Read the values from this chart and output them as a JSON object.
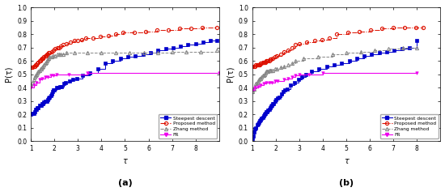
{
  "title_a": "(a)",
  "title_b": "(b)",
  "xlabel": "τ",
  "ylabel": "P(τ)",
  "xlim": [
    1,
    9
  ],
  "ylim": [
    0,
    1
  ],
  "yticks": [
    0,
    0.1,
    0.2,
    0.3,
    0.4,
    0.5,
    0.6,
    0.7,
    0.8,
    0.9,
    1.0
  ],
  "xticks": [
    1,
    2,
    3,
    4,
    5,
    6,
    7,
    8
  ],
  "a_steepest_x": [
    1.0,
    1.08,
    1.12,
    1.16,
    1.2,
    1.24,
    1.28,
    1.32,
    1.36,
    1.4,
    1.44,
    1.48,
    1.52,
    1.56,
    1.6,
    1.64,
    1.68,
    1.72,
    1.76,
    1.8,
    1.84,
    1.88,
    1.92,
    1.96,
    2.0,
    2.08,
    2.16,
    2.24,
    2.32,
    2.4,
    2.48,
    2.64,
    2.8,
    2.96,
    3.2,
    3.52,
    3.84,
    4.16,
    4.48,
    4.8,
    5.12,
    5.44,
    5.76,
    6.08,
    6.4,
    6.72,
    7.04,
    7.36,
    7.68,
    8.0,
    8.32,
    8.64,
    8.9
  ],
  "a_steepest_y": [
    0.2,
    0.21,
    0.21,
    0.22,
    0.24,
    0.24,
    0.25,
    0.25,
    0.27,
    0.27,
    0.27,
    0.28,
    0.28,
    0.29,
    0.3,
    0.3,
    0.3,
    0.31,
    0.32,
    0.33,
    0.34,
    0.35,
    0.37,
    0.38,
    0.38,
    0.4,
    0.4,
    0.41,
    0.41,
    0.43,
    0.44,
    0.45,
    0.46,
    0.47,
    0.49,
    0.51,
    0.54,
    0.58,
    0.6,
    0.62,
    0.63,
    0.64,
    0.65,
    0.66,
    0.68,
    0.69,
    0.7,
    0.71,
    0.72,
    0.73,
    0.74,
    0.75,
    0.75
  ],
  "a_proposed_x": [
    1.0,
    1.08,
    1.12,
    1.16,
    1.2,
    1.24,
    1.28,
    1.32,
    1.36,
    1.4,
    1.44,
    1.48,
    1.52,
    1.56,
    1.6,
    1.64,
    1.68,
    1.72,
    1.76,
    1.8,
    1.88,
    1.96,
    2.04,
    2.12,
    2.2,
    2.28,
    2.36,
    2.52,
    2.68,
    2.84,
    3.0,
    3.16,
    3.32,
    3.64,
    3.96,
    4.28,
    4.6,
    4.92,
    5.4,
    5.88,
    6.36,
    6.84,
    7.32,
    7.8,
    8.28,
    8.9
  ],
  "a_proposed_y": [
    0.55,
    0.55,
    0.56,
    0.56,
    0.57,
    0.57,
    0.58,
    0.59,
    0.6,
    0.6,
    0.61,
    0.62,
    0.62,
    0.63,
    0.64,
    0.64,
    0.65,
    0.65,
    0.66,
    0.66,
    0.67,
    0.68,
    0.69,
    0.7,
    0.7,
    0.71,
    0.72,
    0.73,
    0.74,
    0.75,
    0.75,
    0.76,
    0.77,
    0.77,
    0.78,
    0.79,
    0.8,
    0.81,
    0.81,
    0.82,
    0.83,
    0.83,
    0.84,
    0.84,
    0.85,
    0.85
  ],
  "a_zhang_x": [
    1.0,
    1.08,
    1.12,
    1.16,
    1.2,
    1.24,
    1.28,
    1.32,
    1.36,
    1.4,
    1.44,
    1.48,
    1.52,
    1.56,
    1.6,
    1.64,
    1.68,
    1.72,
    1.76,
    1.8,
    1.88,
    1.96,
    2.04,
    2.12,
    2.2,
    2.28,
    2.36,
    2.52,
    2.84,
    3.4,
    4.0,
    4.6,
    5.2,
    5.8,
    6.4,
    7.0,
    7.6,
    8.2,
    8.9
  ],
  "a_zhang_y": [
    0.42,
    0.44,
    0.46,
    0.48,
    0.49,
    0.5,
    0.51,
    0.52,
    0.53,
    0.54,
    0.54,
    0.55,
    0.56,
    0.57,
    0.58,
    0.59,
    0.6,
    0.61,
    0.62,
    0.63,
    0.63,
    0.64,
    0.64,
    0.65,
    0.65,
    0.65,
    0.65,
    0.66,
    0.66,
    0.66,
    0.66,
    0.66,
    0.66,
    0.66,
    0.66,
    0.67,
    0.67,
    0.67,
    0.68
  ],
  "a_fr_x": [
    1.0,
    1.12,
    1.24,
    1.36,
    1.48,
    1.6,
    1.72,
    1.84,
    1.96,
    2.08,
    2.6,
    3.4,
    9.0
  ],
  "a_fr_y": [
    0.4,
    0.42,
    0.44,
    0.46,
    0.47,
    0.48,
    0.48,
    0.49,
    0.49,
    0.5,
    0.5,
    0.51,
    0.51
  ],
  "b_steepest_x": [
    1.0,
    1.04,
    1.08,
    1.12,
    1.16,
    1.2,
    1.24,
    1.28,
    1.32,
    1.36,
    1.4,
    1.44,
    1.48,
    1.52,
    1.56,
    1.6,
    1.64,
    1.68,
    1.72,
    1.76,
    1.8,
    1.84,
    1.88,
    1.92,
    1.96,
    2.0,
    2.08,
    2.16,
    2.24,
    2.32,
    2.4,
    2.48,
    2.64,
    2.8,
    2.96,
    3.12,
    3.28,
    3.52,
    3.84,
    4.16,
    4.48,
    4.8,
    5.12,
    5.44,
    5.76,
    6.08,
    6.4,
    6.72,
    7.04,
    7.36,
    7.68,
    8.0
  ],
  "b_steepest_y": [
    0.02,
    0.04,
    0.07,
    0.09,
    0.1,
    0.12,
    0.13,
    0.14,
    0.15,
    0.16,
    0.17,
    0.18,
    0.19,
    0.2,
    0.21,
    0.22,
    0.22,
    0.23,
    0.24,
    0.25,
    0.26,
    0.27,
    0.28,
    0.28,
    0.3,
    0.31,
    0.32,
    0.33,
    0.35,
    0.37,
    0.38,
    0.39,
    0.42,
    0.44,
    0.46,
    0.48,
    0.5,
    0.52,
    0.54,
    0.56,
    0.57,
    0.58,
    0.6,
    0.62,
    0.64,
    0.65,
    0.66,
    0.67,
    0.68,
    0.69,
    0.7,
    0.75
  ],
  "b_proposed_x": [
    1.0,
    1.08,
    1.12,
    1.16,
    1.2,
    1.24,
    1.28,
    1.32,
    1.36,
    1.4,
    1.44,
    1.48,
    1.52,
    1.56,
    1.6,
    1.64,
    1.68,
    1.72,
    1.76,
    1.8,
    1.88,
    1.96,
    2.04,
    2.2,
    2.36,
    2.52,
    2.68,
    2.84,
    3.0,
    3.32,
    3.64,
    3.96,
    4.28,
    4.6,
    5.08,
    5.56,
    6.04,
    6.52,
    7.0,
    7.48,
    7.96,
    8.28
  ],
  "b_proposed_y": [
    0.56,
    0.56,
    0.56,
    0.57,
    0.57,
    0.57,
    0.57,
    0.57,
    0.58,
    0.58,
    0.59,
    0.59,
    0.59,
    0.59,
    0.6,
    0.6,
    0.6,
    0.6,
    0.61,
    0.61,
    0.62,
    0.63,
    0.64,
    0.65,
    0.67,
    0.68,
    0.7,
    0.72,
    0.73,
    0.74,
    0.75,
    0.76,
    0.77,
    0.8,
    0.81,
    0.82,
    0.83,
    0.84,
    0.85,
    0.85,
    0.85,
    0.85
  ],
  "b_zhang_x": [
    1.0,
    1.08,
    1.12,
    1.16,
    1.2,
    1.24,
    1.28,
    1.32,
    1.36,
    1.4,
    1.44,
    1.48,
    1.52,
    1.56,
    1.6,
    1.64,
    1.68,
    1.72,
    1.76,
    1.8,
    1.88,
    1.96,
    2.04,
    2.2,
    2.36,
    2.52,
    2.68,
    2.84,
    3.16,
    3.8,
    4.4,
    5.0,
    5.6,
    6.2,
    6.8,
    7.4,
    8.0
  ],
  "b_zhang_y": [
    0.37,
    0.39,
    0.41,
    0.43,
    0.44,
    0.45,
    0.46,
    0.47,
    0.47,
    0.48,
    0.49,
    0.49,
    0.5,
    0.51,
    0.52,
    0.52,
    0.52,
    0.53,
    0.53,
    0.53,
    0.53,
    0.54,
    0.54,
    0.55,
    0.56,
    0.57,
    0.58,
    0.6,
    0.62,
    0.63,
    0.65,
    0.66,
    0.67,
    0.68,
    0.69,
    0.7,
    0.7
  ],
  "b_fr_x": [
    1.0,
    1.12,
    1.24,
    1.36,
    1.48,
    1.6,
    1.72,
    1.84,
    1.96,
    2.08,
    2.36,
    2.52,
    2.68,
    2.84,
    3.0,
    3.4,
    4.0,
    8.0
  ],
  "b_fr_y": [
    0.38,
    0.4,
    0.41,
    0.42,
    0.43,
    0.44,
    0.44,
    0.44,
    0.45,
    0.45,
    0.46,
    0.47,
    0.48,
    0.49,
    0.5,
    0.5,
    0.51,
    0.51
  ],
  "color_steepest": "#0000cc",
  "color_proposed": "#dd1100",
  "color_zhang": "#888888",
  "color_fr": "#ee00ee",
  "legend_labels": [
    "Steepest descent",
    "Proposed method",
    "Zhang method",
    "FR"
  ]
}
